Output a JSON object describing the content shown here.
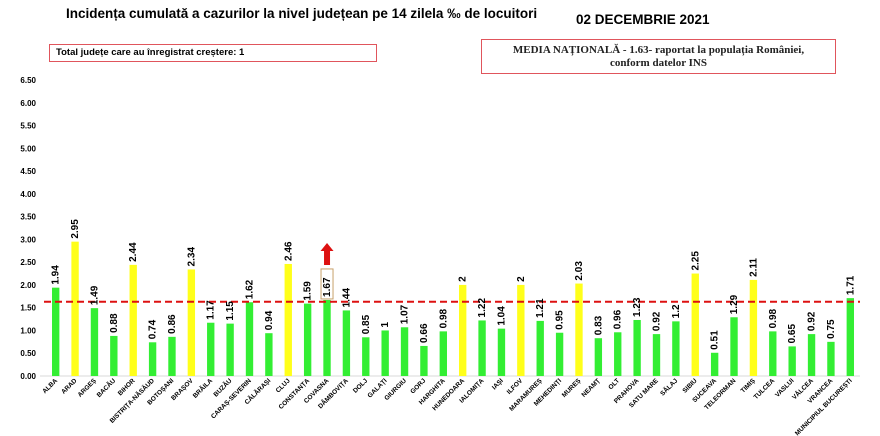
{
  "header": {
    "title": "Incidența cumulată a cazurilor la nivel județean pe 14 zilela ‰ de locuitori",
    "date": "02 DECEMBRIE 2021"
  },
  "notes": {
    "increase_box": "Total județe care au înregistrat creștere: 1",
    "national_line1": "MEDIA NAȚIONALĂ  - 1.63-  raportat la populația României,",
    "national_line2": "conform datelor INS"
  },
  "colors": {
    "green": "#33ee33",
    "yellow": "#ffff1a",
    "average_line": "#dd1111",
    "arrow": "#dd1111",
    "axis_text": "#000000"
  },
  "chart_data": {
    "type": "bar",
    "title": "Incidența cumulată a cazurilor la nivel județean pe 14 zilela ‰ de locuitori",
    "categories": [
      "ALBA",
      "ARAD",
      "ARGEȘ",
      "BACĂU",
      "BIHOR",
      "BISTRIȚA-NĂSĂUD",
      "BOTOȘANI",
      "BRAȘOV",
      "BRĂILA",
      "BUZĂU",
      "CARAȘ-SEVERIN",
      "CĂLĂRAȘI",
      "CLUJ",
      "CONSTANȚA",
      "COVASNA",
      "DÂMBOVIȚA",
      "DOLJ",
      "GALAȚI",
      "GIURGIU",
      "GORJ",
      "HARGHITA",
      "HUNEDOARA",
      "IALOMIȚA",
      "IAȘI",
      "ILFOV",
      "MARAMUREȘ",
      "MEHEDINȚI",
      "MUREȘ",
      "NEAMȚ",
      "OLT",
      "PRAHOVA",
      "SATU MARE",
      "SĂLAJ",
      "SIBIU",
      "SUCEAVA",
      "TELEORMAN",
      "TIMIȘ",
      "TULCEA",
      "VASLUI",
      "VÂLCEA",
      "VRANCEA",
      "MUNICIPIUL BUCUREȘTI"
    ],
    "values": [
      1.94,
      2.95,
      1.49,
      0.88,
      2.44,
      0.74,
      0.86,
      2.34,
      1.17,
      1.15,
      1.62,
      0.94,
      2.46,
      1.59,
      1.67,
      1.44,
      0.85,
      1,
      1.07,
      0.66,
      0.98,
      2,
      1.22,
      1.04,
      2,
      1.21,
      0.95,
      2.03,
      0.83,
      0.96,
      1.23,
      0.92,
      1.2,
      2.25,
      0.51,
      1.29,
      2.11,
      0.98,
      0.65,
      0.92,
      0.75,
      1.71
    ],
    "value_labels": [
      "1.94",
      "2.95",
      "1.49",
      "0.88",
      "2.44",
      "0.74",
      "0.86",
      "2.34",
      "1.17",
      "1.15",
      "1.62",
      "0.94",
      "2.46",
      "1.59",
      "1.67",
      "1.44",
      "0.85",
      "1",
      "1.07",
      "0.66",
      "0.98",
      "2",
      "1.22",
      "1.04",
      "2",
      "1.21",
      "0.95",
      "2.03",
      "0.83",
      "0.96",
      "1.23",
      "0.92",
      "1.2",
      "2.25",
      "0.51",
      "1.29",
      "2.11",
      "0.98",
      "0.65",
      "0.92",
      "0.75",
      "1.71"
    ],
    "bar_colors": [
      "green",
      "yellow",
      "green",
      "green",
      "yellow",
      "green",
      "green",
      "yellow",
      "green",
      "green",
      "green",
      "green",
      "yellow",
      "green",
      "green",
      "green",
      "green",
      "green",
      "green",
      "green",
      "green",
      "yellow",
      "green",
      "green",
      "yellow",
      "green",
      "green",
      "yellow",
      "green",
      "green",
      "green",
      "green",
      "green",
      "yellow",
      "green",
      "green",
      "yellow",
      "green",
      "green",
      "green",
      "green",
      "green"
    ],
    "y_ticks": [
      "0.00",
      "0.50",
      "1.00",
      "1.50",
      "2.00",
      "2.50",
      "3.00",
      "3.50",
      "4.00",
      "4.50",
      "5.00",
      "5.50",
      "6.00",
      "6.50"
    ],
    "ylim": [
      0,
      6.5
    ],
    "reference_line": 1.63,
    "increase_marker_category": "COVASNA",
    "boxed_label_category": "COVASNA",
    "grid": false,
    "legend": "none"
  }
}
